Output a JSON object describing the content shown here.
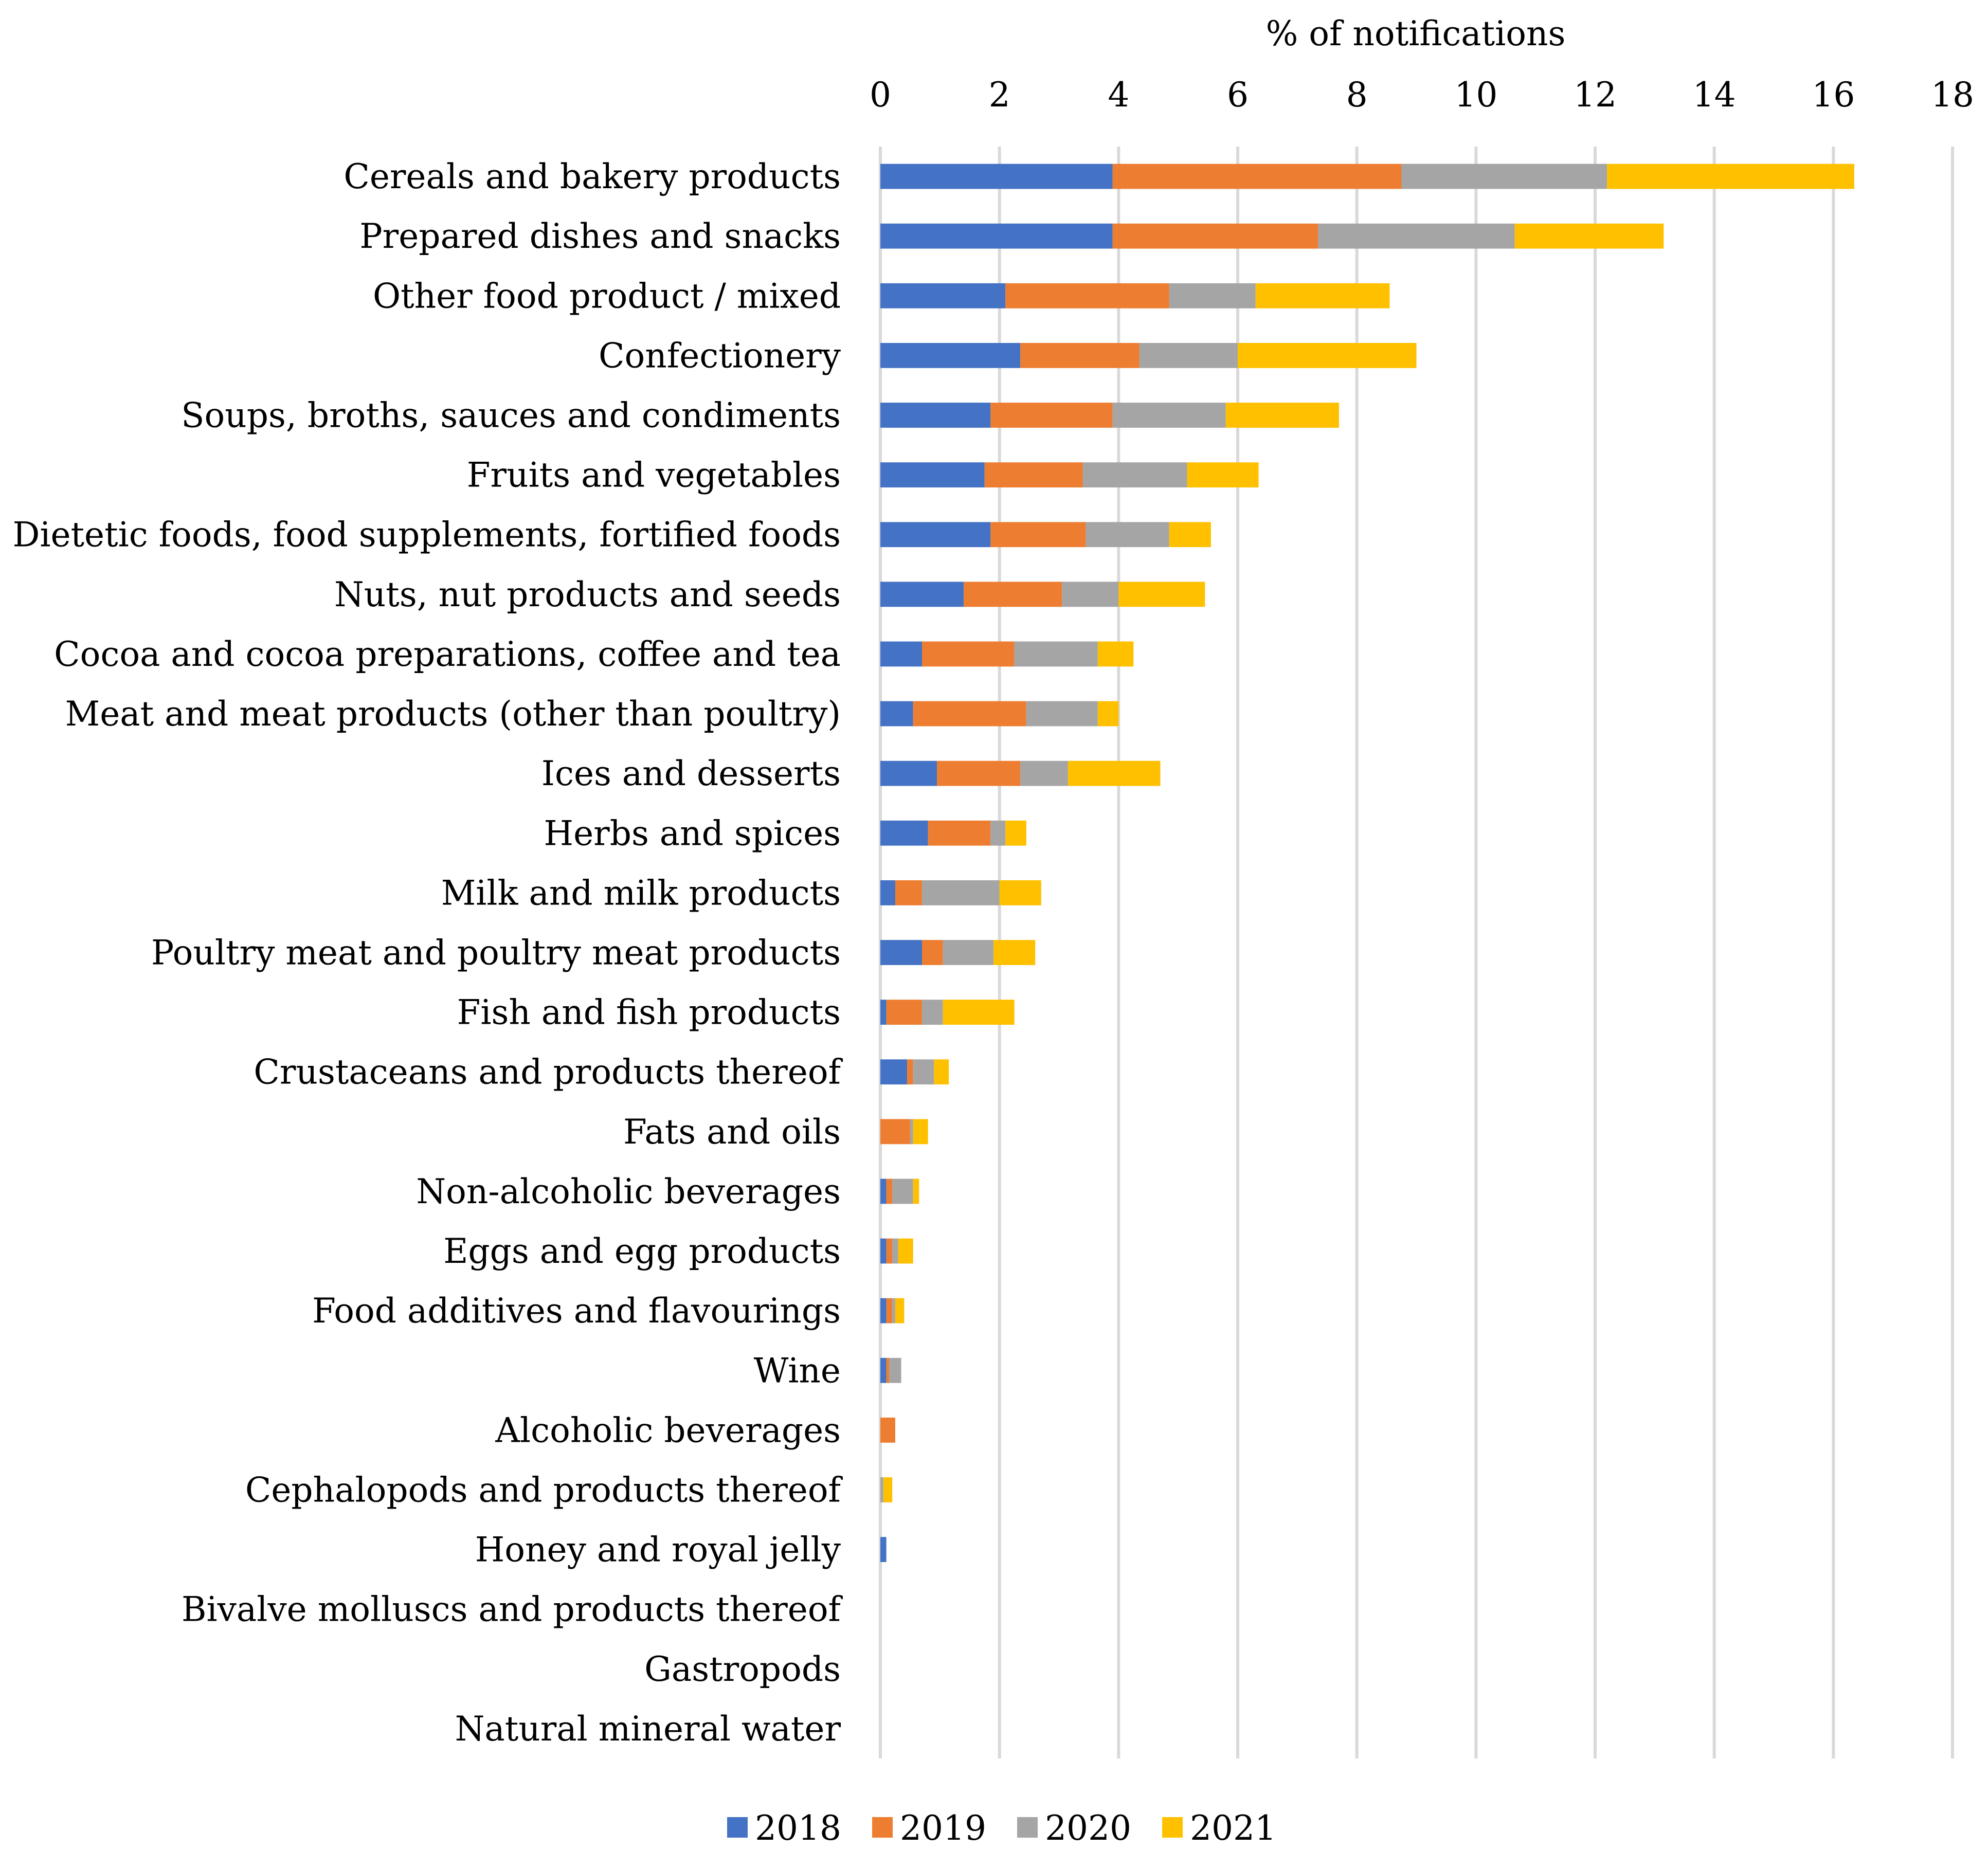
{
  "chart_data": {
    "type": "bar",
    "orientation": "horizontal",
    "stacked": true,
    "title": "",
    "xlabel": "% of notifications",
    "ylabel": "",
    "xlim": [
      0,
      18
    ],
    "xticks": [
      "0",
      "2",
      "4",
      "6",
      "8",
      "10",
      "12",
      "14",
      "16",
      "18"
    ],
    "grid": true,
    "axis_position": "top",
    "legend_position": "bottom",
    "categories": [
      "Cereals and bakery products",
      "Prepared dishes and snacks",
      "Other food product / mixed",
      "Confectionery",
      "Soups, broths, sauces and condiments",
      "Fruits and vegetables",
      "Dietetic foods, food supplements, fortified foods",
      "Nuts, nut products and seeds",
      "Cocoa and cocoa preparations, coffee and tea",
      "Meat and meat products (other than poultry)",
      "Ices and desserts",
      "Herbs and spices",
      "Milk and milk products",
      "Poultry meat and poultry meat products",
      "Fish and fish products",
      "Crustaceans and products thereof",
      "Fats and oils",
      "Non-alcoholic beverages",
      "Eggs and egg products",
      "Food additives and flavourings",
      "Wine",
      "Alcoholic beverages",
      "Cephalopods and products thereof",
      "Honey and royal jelly",
      "Bivalve molluscs and products thereof",
      "Gastropods",
      "Natural mineral water"
    ],
    "series": [
      {
        "name": "2018",
        "color": "#4472C4",
        "values": [
          3.9,
          3.9,
          2.1,
          2.35,
          1.85,
          1.75,
          1.85,
          1.4,
          0.7,
          0.55,
          0.95,
          0.8,
          0.25,
          0.7,
          0.1,
          0.45,
          0.0,
          0.1,
          0.1,
          0.1,
          0.1,
          0.0,
          0.0,
          0.1,
          0.0,
          0.0,
          0.0
        ]
      },
      {
        "name": "2019",
        "color": "#ED7D31",
        "values": [
          4.85,
          3.45,
          2.75,
          2.0,
          2.05,
          1.65,
          1.6,
          1.65,
          1.55,
          1.9,
          1.4,
          1.05,
          0.45,
          0.35,
          0.6,
          0.1,
          0.5,
          0.1,
          0.1,
          0.1,
          0.05,
          0.25,
          0.0,
          0.0,
          0.0,
          0.0,
          0.0
        ]
      },
      {
        "name": "2020",
        "color": "#A5A5A5",
        "values": [
          3.45,
          3.3,
          1.45,
          1.65,
          1.9,
          1.75,
          1.4,
          0.95,
          1.4,
          1.2,
          0.8,
          0.25,
          1.3,
          0.85,
          0.35,
          0.35,
          0.05,
          0.35,
          0.1,
          0.05,
          0.2,
          0.0,
          0.05,
          0.0,
          0.0,
          0.0,
          0.0
        ]
      },
      {
        "name": "2021",
        "color": "#FFC000",
        "values": [
          4.15,
          2.5,
          2.25,
          3.0,
          1.9,
          1.2,
          0.7,
          1.45,
          0.6,
          0.35,
          1.55,
          0.35,
          0.7,
          0.7,
          1.2,
          0.25,
          0.25,
          0.1,
          0.25,
          0.15,
          0.0,
          0.0,
          0.15,
          0.0,
          0.0,
          0.0,
          0.0
        ]
      }
    ]
  }
}
